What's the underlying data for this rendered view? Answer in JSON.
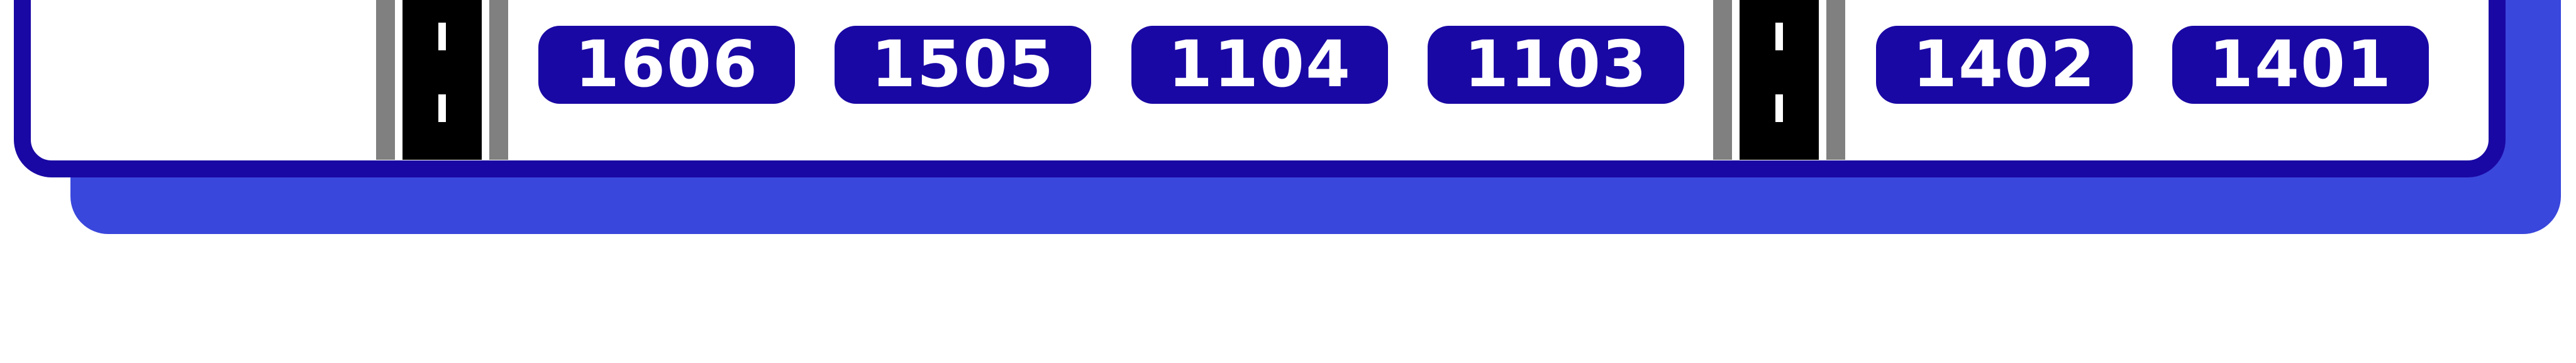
{
  "colors": {
    "panel_border": "#1a08a4",
    "panel_shadow": "#3a47dc",
    "plot_fill": "#1a08a4",
    "plot_text": "#ffffff",
    "road_asphalt": "#000000",
    "road_shoulder": "#808080",
    "lane_marking": "#ffffff"
  },
  "plots": [
    {
      "label": "1606"
    },
    {
      "label": "1505"
    },
    {
      "label": "1104"
    },
    {
      "label": "1103"
    },
    {
      "label": "1402"
    },
    {
      "label": "1401"
    }
  ]
}
